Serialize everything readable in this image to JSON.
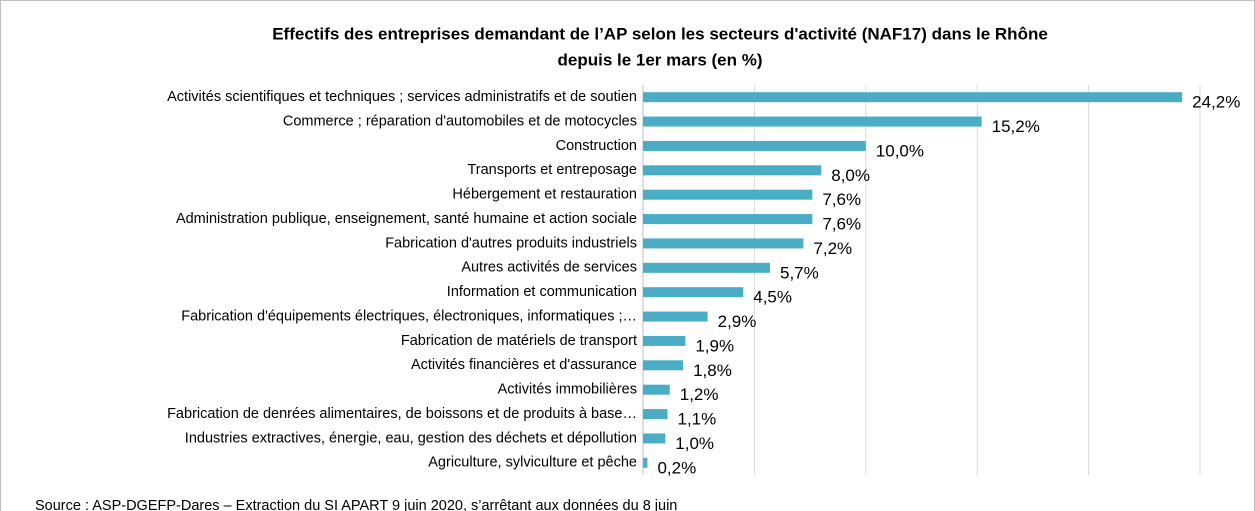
{
  "chart_data": {
    "type": "barh",
    "title": [
      "Effectifs des entreprises demandant de l’AP selon les secteurs d'activité (NAF17) dans le Rhône",
      "depuis le 1er mars (en %)"
    ],
    "categories": [
      "Activités scientifiques et techniques ; services administratifs et de soutien",
      "Commerce ; réparation d'automobiles et de motocycles",
      "Construction",
      "Transports et entreposage",
      "Hébergement et restauration",
      "Administration publique, enseignement, santé humaine et action sociale",
      "Fabrication d'autres produits industriels",
      "Autres activités de services",
      "Information et communication",
      "Fabrication d'équipements électriques, électroniques, informatiques ;…",
      "Fabrication de matériels de transport",
      "Activités financières et d'assurance",
      "Activités immobilières",
      "Fabrication de denrées alimentaires, de boissons et  de produits à base…",
      "Industries extractives,  énergie, eau, gestion des déchets et dépollution",
      "Agriculture, sylviculture et pêche"
    ],
    "values": [
      24.2,
      15.2,
      10.0,
      8.0,
      7.6,
      7.6,
      7.2,
      5.7,
      4.5,
      2.9,
      1.9,
      1.8,
      1.2,
      1.1,
      1.0,
      0.2
    ],
    "value_labels": [
      "24,2%",
      "15,2%",
      "10,0%",
      "8,0%",
      "7,6%",
      "7,6%",
      "7,2%",
      "5,7%",
      "4,5%",
      "2,9%",
      "1,9%",
      "1,8%",
      "1,2%",
      "1,1%",
      "1,0%",
      "0,2%"
    ],
    "color": "#4bacc6",
    "xlim": [
      0,
      25
    ],
    "xticks": [
      0,
      5,
      10,
      15,
      20,
      25
    ],
    "grid": true,
    "source": "Source : ASP-DGEFP-Dares – Extraction du SI APART 9 juin 2020, s’arrêtant aux données du 8 juin"
  }
}
